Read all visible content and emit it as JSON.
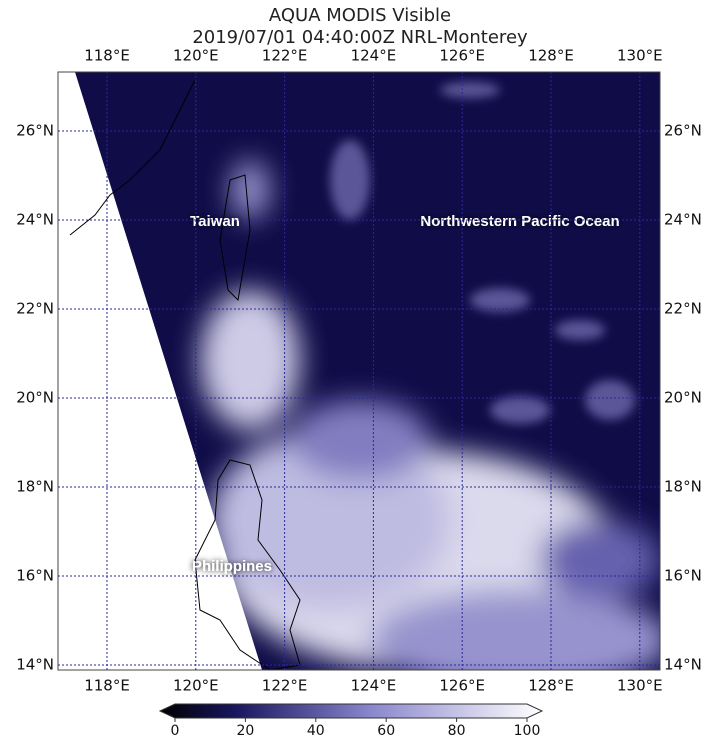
{
  "header": {
    "title": "AQUA MODIS Visible",
    "subtitle": "2019/07/01 04:40:00Z NRL-Monterey"
  },
  "map": {
    "lon_labels": [
      "118°E",
      "120°E",
      "122°E",
      "124°E",
      "126°E",
      "128°E",
      "130°E"
    ],
    "lat_labels": [
      "26°N",
      "24°N",
      "22°N",
      "20°N",
      "18°N",
      "16°N",
      "14°N"
    ],
    "places": [
      "Taiwan",
      "Northwestern Pacific Ocean",
      "Philippines"
    ]
  },
  "colorbar": {
    "ticks": [
      0,
      20,
      40,
      60,
      80,
      100
    ]
  }
}
